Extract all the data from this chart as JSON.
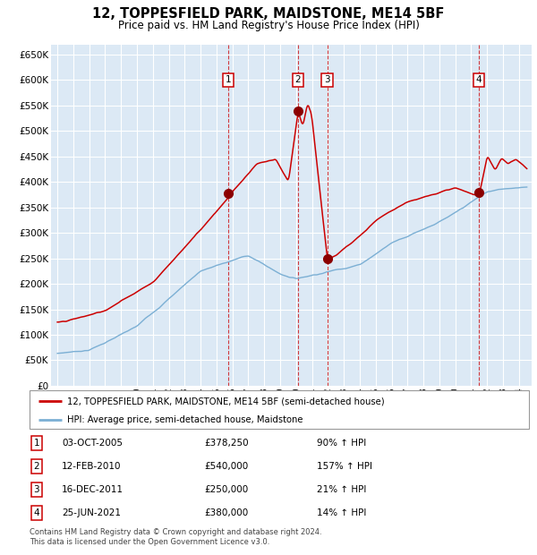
{
  "title": "12, TOPPESFIELD PARK, MAIDSTONE, ME14 5BF",
  "subtitle": "Price paid vs. HM Land Registry's House Price Index (HPI)",
  "background_color": "#dce9f5",
  "grid_color": "#ffffff",
  "hpi_line_color": "#7bafd4",
  "price_line_color": "#cc0000",
  "marker_color": "#8b0000",
  "ylim": [
    0,
    670000
  ],
  "xlim": [
    1994.6,
    2024.8
  ],
  "sales": [
    {
      "label": "1",
      "x_year": 2005.75,
      "price": 378250
    },
    {
      "label": "2",
      "x_year": 2010.11,
      "price": 540000
    },
    {
      "label": "3",
      "x_year": 2011.96,
      "price": 250000
    },
    {
      "label": "4",
      "x_year": 2021.48,
      "price": 380000
    }
  ],
  "footer_lines": [
    "Contains HM Land Registry data © Crown copyright and database right 2024.",
    "This data is licensed under the Open Government Licence v3.0."
  ],
  "legend_line1": "12, TOPPESFIELD PARK, MAIDSTONE, ME14 5BF (semi-detached house)",
  "legend_line2": "HPI: Average price, semi-detached house, Maidstone",
  "table_rows": [
    [
      "1",
      "03-OCT-2005",
      "£378,250",
      "90% ↑ HPI"
    ],
    [
      "2",
      "12-FEB-2010",
      "£540,000",
      "157% ↑ HPI"
    ],
    [
      "3",
      "16-DEC-2011",
      "£250,000",
      "21% ↑ HPI"
    ],
    [
      "4",
      "25-JUN-2021",
      "£380,000",
      "14% ↑ HPI"
    ]
  ]
}
